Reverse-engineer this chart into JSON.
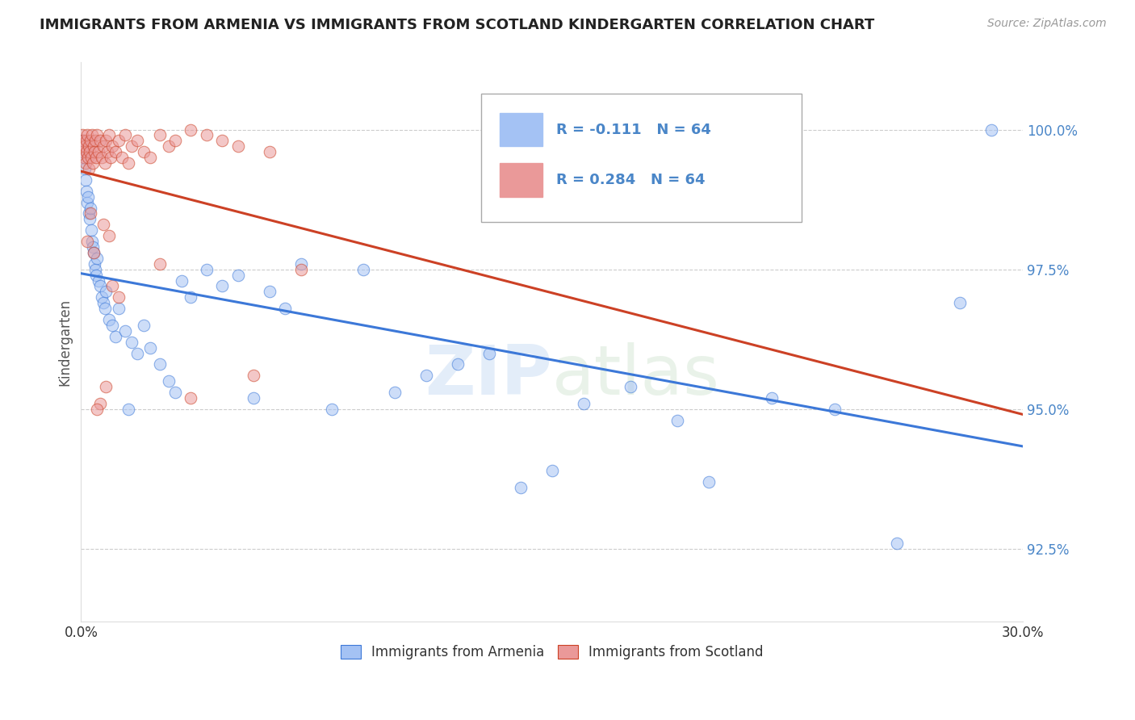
{
  "title": "IMMIGRANTS FROM ARMENIA VS IMMIGRANTS FROM SCOTLAND KINDERGARTEN CORRELATION CHART",
  "source": "Source: ZipAtlas.com",
  "ylabel": "Kindergarten",
  "yticks": [
    92.5,
    95.0,
    97.5,
    100.0
  ],
  "ytick_labels": [
    "92.5%",
    "95.0%",
    "97.5%",
    "100.0%"
  ],
  "xlim": [
    0.0,
    30.0
  ],
  "ylim": [
    91.2,
    101.2
  ],
  "r_armenia": -0.111,
  "r_scotland": 0.284,
  "n_armenia": 64,
  "n_scotland": 64,
  "color_armenia": "#a4c2f4",
  "color_scotland": "#ea9999",
  "trend_color_armenia": "#3c78d8",
  "trend_color_scotland": "#cc4125",
  "tick_color": "#4a86c8",
  "legend_label_armenia": "Immigrants from Armenia",
  "legend_label_scotland": "Immigrants from Scotland",
  "armenia_x": [
    0.05,
    0.08,
    0.1,
    0.12,
    0.15,
    0.18,
    0.2,
    0.22,
    0.25,
    0.28,
    0.3,
    0.32,
    0.35,
    0.38,
    0.4,
    0.42,
    0.45,
    0.48,
    0.5,
    0.55,
    0.6,
    0.65,
    0.7,
    0.75,
    0.8,
    0.9,
    1.0,
    1.1,
    1.2,
    1.4,
    1.6,
    1.8,
    2.0,
    2.2,
    2.5,
    2.8,
    3.2,
    3.5,
    4.0,
    4.5,
    5.0,
    5.5,
    6.0,
    6.5,
    7.0,
    8.0,
    9.0,
    10.0,
    11.0,
    12.0,
    13.0,
    14.0,
    15.0,
    16.0,
    17.5,
    19.0,
    20.0,
    22.0,
    24.0,
    26.0,
    28.0,
    1.5,
    3.0,
    29.0
  ],
  "armenia_y": [
    99.8,
    99.6,
    99.5,
    99.3,
    99.1,
    98.9,
    98.7,
    98.8,
    98.5,
    98.4,
    98.6,
    98.2,
    98.0,
    97.9,
    97.8,
    97.6,
    97.5,
    97.4,
    97.7,
    97.3,
    97.2,
    97.0,
    96.9,
    96.8,
    97.1,
    96.6,
    96.5,
    96.3,
    96.8,
    96.4,
    96.2,
    96.0,
    96.5,
    96.1,
    95.8,
    95.5,
    97.3,
    97.0,
    97.5,
    97.2,
    97.4,
    95.2,
    97.1,
    96.8,
    97.6,
    95.0,
    97.5,
    95.3,
    95.6,
    95.8,
    96.0,
    93.6,
    93.9,
    95.1,
    95.4,
    94.8,
    93.7,
    95.2,
    95.0,
    92.6,
    96.9,
    95.0,
    95.3,
    100.0
  ],
  "scotland_x": [
    0.03,
    0.05,
    0.07,
    0.08,
    0.1,
    0.12,
    0.14,
    0.16,
    0.18,
    0.2,
    0.22,
    0.24,
    0.26,
    0.28,
    0.3,
    0.32,
    0.35,
    0.38,
    0.4,
    0.42,
    0.45,
    0.48,
    0.5,
    0.55,
    0.6,
    0.65,
    0.7,
    0.75,
    0.8,
    0.85,
    0.9,
    0.95,
    1.0,
    1.1,
    1.2,
    1.3,
    1.4,
    1.5,
    1.6,
    1.8,
    2.0,
    2.2,
    2.5,
    2.8,
    3.0,
    3.5,
    4.0,
    4.5,
    5.0,
    6.0,
    2.5,
    3.5,
    5.5,
    7.0,
    0.2,
    0.4,
    0.6,
    0.8,
    1.0,
    1.2,
    0.3,
    0.5,
    0.7,
    0.9
  ],
  "scotland_y": [
    99.7,
    99.9,
    99.6,
    99.8,
    99.5,
    99.7,
    99.4,
    99.8,
    99.6,
    99.9,
    99.5,
    99.7,
    99.3,
    99.6,
    99.8,
    99.5,
    99.9,
    99.4,
    99.7,
    99.6,
    99.8,
    99.5,
    99.9,
    99.6,
    99.8,
    99.5,
    99.7,
    99.4,
    99.8,
    99.6,
    99.9,
    99.5,
    99.7,
    99.6,
    99.8,
    99.5,
    99.9,
    99.4,
    99.7,
    99.8,
    99.6,
    99.5,
    99.9,
    99.7,
    99.8,
    100.0,
    99.9,
    99.8,
    99.7,
    99.6,
    97.6,
    95.2,
    95.6,
    97.5,
    98.0,
    97.8,
    95.1,
    95.4,
    97.2,
    97.0,
    98.5,
    95.0,
    98.3,
    98.1
  ]
}
